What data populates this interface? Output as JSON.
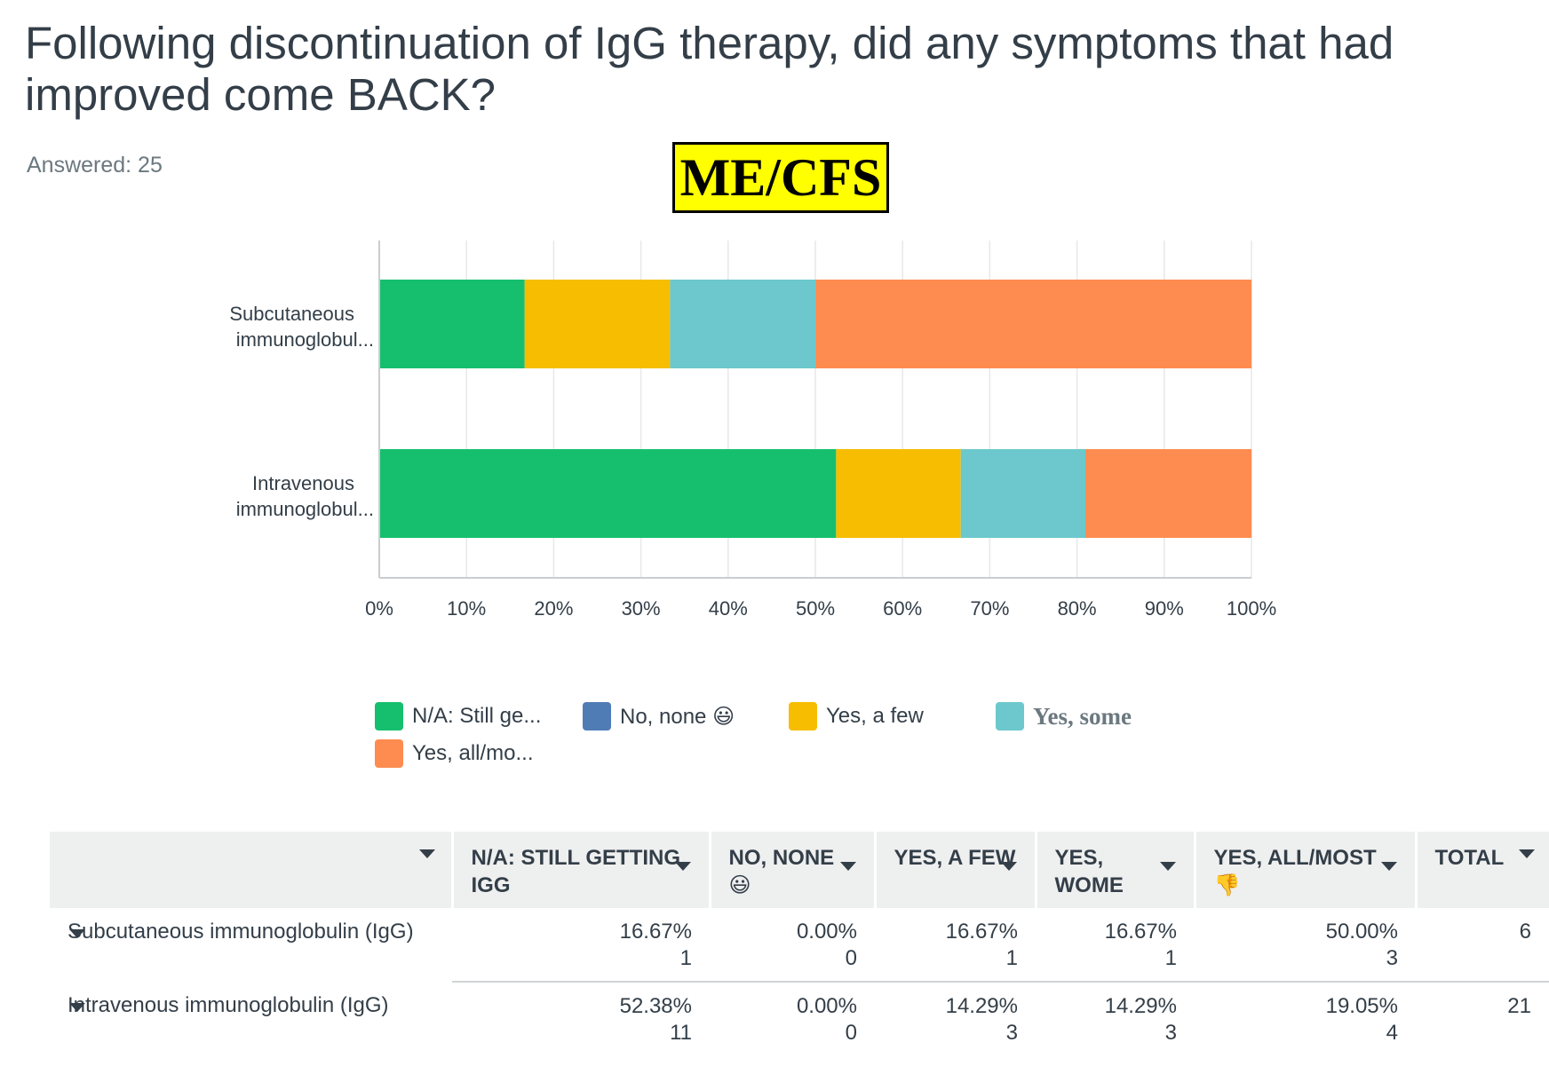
{
  "title": "Following discontinuation of IgG therapy, did any symptoms that had improved come BACK?",
  "answered": "Answered: 25",
  "badge": "ME/CFS",
  "colors": {
    "na": "#16bf6e",
    "none": "#507cb6",
    "few": "#f7bd00",
    "some": "#6cc8cc",
    "all": "#fe8c50"
  },
  "chart_data": {
    "type": "bar",
    "orientation": "horizontal",
    "stacked": true,
    "categories": [
      "Subcutaneous immunoglobul...",
      "Intravenous immunoglobul..."
    ],
    "series": [
      {
        "name": "N/A: Still ge...",
        "color": "#16bf6e",
        "values": [
          16.67,
          52.38
        ]
      },
      {
        "name": "No, none 😃",
        "color": "#507cb6",
        "values": [
          0.0,
          0.0
        ]
      },
      {
        "name": "Yes, a few",
        "color": "#f7bd00",
        "values": [
          16.67,
          14.29
        ]
      },
      {
        "name": "Yes, some",
        "color": "#6cc8cc",
        "values": [
          16.67,
          14.29
        ]
      },
      {
        "name": "Yes, all/mo...",
        "color": "#fe8c50",
        "values": [
          50.0,
          19.05
        ]
      }
    ],
    "xlim": [
      0,
      100
    ],
    "xticks": [
      "0%",
      "10%",
      "20%",
      "30%",
      "40%",
      "50%",
      "60%",
      "70%",
      "80%",
      "90%",
      "100%"
    ],
    "grid": true,
    "legend_position": "bottom"
  },
  "table": {
    "headers": [
      "",
      "N/A: STILL GETTING IGG",
      "NO, NONE 😃",
      "YES, A FEW",
      "YES, WOME",
      "YES, ALL/MOST 👎",
      "TOTAL"
    ],
    "rows": [
      {
        "label": "Subcutaneous immunoglobulin (IgG)",
        "cells": [
          {
            "pct": "16.67%",
            "count": "1"
          },
          {
            "pct": "0.00%",
            "count": "0"
          },
          {
            "pct": "16.67%",
            "count": "1"
          },
          {
            "pct": "16.67%",
            "count": "1"
          },
          {
            "pct": "50.00%",
            "count": "3"
          }
        ],
        "total": "6"
      },
      {
        "label": "Intravenous immunoglobulin (IgG)",
        "cells": [
          {
            "pct": "52.38%",
            "count": "11"
          },
          {
            "pct": "0.00%",
            "count": "0"
          },
          {
            "pct": "14.29%",
            "count": "3"
          },
          {
            "pct": "14.29%",
            "count": "3"
          },
          {
            "pct": "19.05%",
            "count": "4"
          }
        ],
        "total": "21"
      }
    ]
  }
}
